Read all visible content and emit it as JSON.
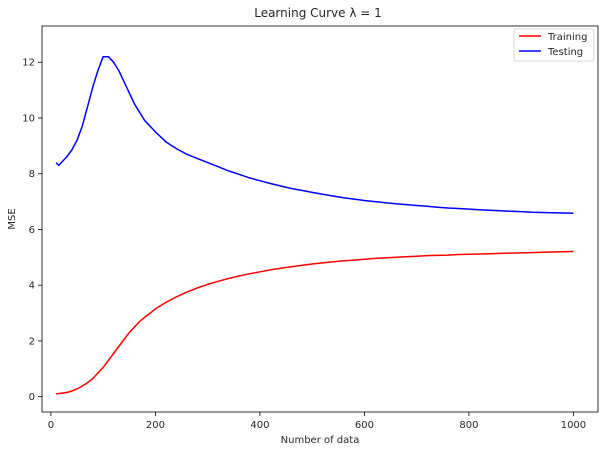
{
  "chart_data": {
    "type": "line",
    "title": "Learning Curve λ = 1",
    "xlabel": "Number of data",
    "ylabel": "MSE",
    "xlim": [
      -17,
      1047
    ],
    "ylim": [
      -0.55,
      13.3
    ],
    "xticks": [
      0,
      200,
      400,
      600,
      800,
      1000
    ],
    "yticks": [
      0,
      2,
      4,
      6,
      8,
      10,
      12
    ],
    "grid": false,
    "legend_position": "top-right",
    "series": [
      {
        "name": "Training",
        "color": "#ff0000",
        "x": [
          10,
          20,
          30,
          40,
          50,
          60,
          70,
          80,
          90,
          100,
          110,
          120,
          130,
          140,
          150,
          160,
          170,
          180,
          190,
          200,
          220,
          240,
          260,
          280,
          300,
          320,
          340,
          360,
          380,
          400,
          420,
          440,
          460,
          480,
          500,
          520,
          540,
          560,
          580,
          600,
          620,
          640,
          660,
          680,
          700,
          720,
          740,
          760,
          780,
          800,
          820,
          840,
          860,
          880,
          900,
          920,
          940,
          960,
          980,
          1000
        ],
        "y": [
          0.1,
          0.12,
          0.15,
          0.2,
          0.28,
          0.38,
          0.5,
          0.65,
          0.85,
          1.05,
          1.3,
          1.55,
          1.8,
          2.05,
          2.3,
          2.5,
          2.7,
          2.85,
          3.0,
          3.15,
          3.38,
          3.58,
          3.75,
          3.9,
          4.03,
          4.14,
          4.24,
          4.33,
          4.41,
          4.48,
          4.55,
          4.61,
          4.66,
          4.71,
          4.76,
          4.8,
          4.84,
          4.87,
          4.9,
          4.93,
          4.96,
          4.98,
          5.0,
          5.02,
          5.04,
          5.06,
          5.07,
          5.08,
          5.1,
          5.11,
          5.12,
          5.13,
          5.14,
          5.15,
          5.16,
          5.17,
          5.18,
          5.19,
          5.2,
          5.21
        ]
      },
      {
        "name": "Testing",
        "color": "#0000ff",
        "x": [
          10,
          15,
          20,
          30,
          40,
          50,
          60,
          70,
          80,
          90,
          100,
          110,
          120,
          130,
          140,
          150,
          160,
          170,
          180,
          190,
          200,
          220,
          240,
          260,
          280,
          300,
          320,
          340,
          360,
          380,
          400,
          420,
          440,
          460,
          480,
          500,
          520,
          540,
          560,
          580,
          600,
          620,
          640,
          660,
          680,
          700,
          720,
          740,
          760,
          780,
          800,
          820,
          840,
          860,
          880,
          900,
          920,
          940,
          960,
          980,
          1000
        ],
        "y": [
          8.4,
          8.3,
          8.4,
          8.6,
          8.85,
          9.2,
          9.7,
          10.4,
          11.1,
          11.7,
          12.2,
          12.2,
          12.0,
          11.7,
          11.3,
          10.9,
          10.5,
          10.2,
          9.9,
          9.7,
          9.5,
          9.15,
          8.9,
          8.7,
          8.55,
          8.4,
          8.25,
          8.1,
          7.98,
          7.85,
          7.75,
          7.65,
          7.56,
          7.47,
          7.4,
          7.33,
          7.26,
          7.2,
          7.14,
          7.09,
          7.04,
          7.0,
          6.96,
          6.92,
          6.89,
          6.86,
          6.83,
          6.8,
          6.77,
          6.75,
          6.73,
          6.71,
          6.69,
          6.67,
          6.65,
          6.64,
          6.62,
          6.61,
          6.6,
          6.59,
          6.58
        ]
      }
    ]
  }
}
